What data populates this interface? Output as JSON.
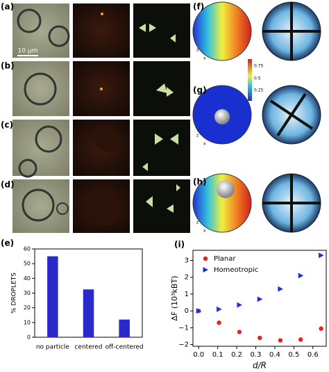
{
  "panel_labels": [
    "(a)",
    "(b)",
    "(c)",
    "(d)",
    "(f)",
    "(g)",
    "(h)"
  ],
  "scale_bar": "10 μm",
  "axis_labels": [
    "z",
    "x"
  ],
  "colorbar_ticks": [
    0.75,
    0.5,
    0.25
  ],
  "chart_data": [
    {
      "type": "bar",
      "panel_label": "(e)",
      "ylabel": "% DROPLETS",
      "categories": [
        "no particle",
        "centered",
        "off-centered"
      ],
      "values": [
        55,
        32.5,
        12
      ],
      "color": "#2a2acb",
      "ylim": [
        0,
        60
      ],
      "yticks": [
        0,
        10,
        20,
        30,
        40,
        50,
        60
      ]
    },
    {
      "type": "scatter",
      "panel_label": "(i)",
      "xlabel": "d/R",
      "ylabel": "ΔF (10³kBT)",
      "x": [
        0,
        0.107,
        0.214,
        0.321,
        0.429,
        0.536,
        0.643
      ],
      "series": [
        {
          "name": "Planar",
          "color": "#e8231f",
          "marker": "circle",
          "values": [
            0,
            -0.7,
            -1.25,
            -1.6,
            -1.75,
            -1.7,
            -1.05
          ]
        },
        {
          "name": "Homeotropic",
          "color": "#1f2fd6",
          "marker": "triangle-right",
          "values": [
            0,
            0.1,
            0.35,
            0.7,
            1.3,
            2.1,
            3.3
          ]
        }
      ],
      "xlim": [
        -0.03,
        0.67
      ],
      "xticks": [
        {
          "value": 0,
          "label": "0.0"
        },
        0.1,
        0.2,
        0.3,
        0.4,
        0.5,
        0.6
      ],
      "ylim": [
        -2.1,
        3.6
      ],
      "yticks": [
        {
          "value": -2,
          "label": "−2"
        },
        {
          "value": -1,
          "label": "−1"
        },
        0,
        1,
        2,
        3
      ],
      "legend": "upper-left"
    }
  ]
}
